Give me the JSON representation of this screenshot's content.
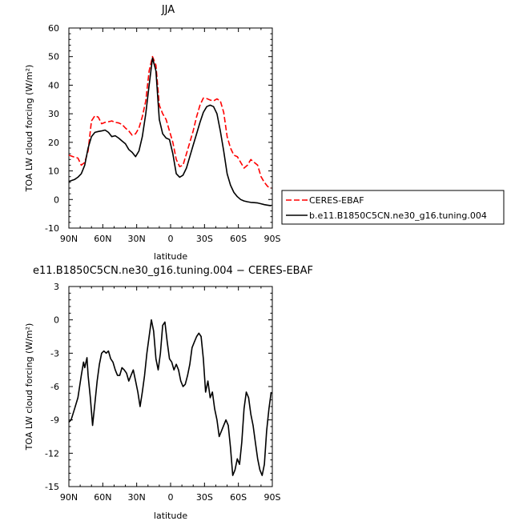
{
  "chart_data": [
    {
      "type": "line",
      "title": "JJA",
      "xlabel": "latitude",
      "ylabel": "TOA LW cloud forcing (W/m²)",
      "xlim": [
        90,
        -90
      ],
      "ylim": [
        -10,
        60
      ],
      "x_tick_labels": [
        "90N",
        "60N",
        "30N",
        "0",
        "30S",
        "60S",
        "90S"
      ],
      "y_tick_labels": [
        "-10",
        "0",
        "10",
        "20",
        "30",
        "40",
        "50",
        "60"
      ],
      "legend_placement": "right",
      "series": [
        {
          "name": "CERES-EBAF",
          "color": "#ff0000",
          "dash": "dashed",
          "x": [
            90,
            85,
            82,
            79,
            76,
            73,
            70,
            67,
            64,
            61,
            58,
            55,
            52,
            49,
            46,
            43,
            40,
            37,
            34,
            31,
            28,
            25,
            22,
            19,
            16,
            13,
            10,
            7,
            4,
            1,
            -2,
            -5,
            -8,
            -11,
            -14,
            -17,
            -20,
            -23,
            -26,
            -29,
            -32,
            -35,
            -38,
            -41,
            -44,
            -47,
            -50,
            -53,
            -56,
            -59,
            -62,
            -65,
            -68,
            -71,
            -74,
            -77,
            -80,
            -83,
            -86,
            -89
          ],
          "y": [
            15.5,
            14.8,
            14.5,
            12.0,
            13.0,
            17.0,
            27.5,
            29.3,
            28.8,
            26.5,
            27.0,
            27.2,
            27.5,
            27.0,
            26.8,
            26.3,
            25.0,
            24.0,
            22.5,
            23.0,
            25.0,
            29.0,
            34.5,
            45.0,
            50.0,
            47.0,
            33.0,
            30.0,
            28.0,
            24.0,
            20.0,
            14.0,
            11.5,
            12.0,
            16.0,
            20.0,
            24.0,
            29.0,
            33.0,
            35.5,
            35.3,
            34.8,
            34.5,
            35.2,
            34.5,
            30.5,
            22.0,
            18.0,
            15.5,
            15.0,
            13.0,
            11.0,
            12.0,
            14.0,
            13.0,
            12.0,
            8.0,
            6.0,
            4.5,
            4.0
          ]
        },
        {
          "name": "b.e11.B1850C5CN.ne30_g16.tuning.004",
          "color": "#000000",
          "dash": "solid",
          "x": [
            90,
            85,
            82,
            79,
            76,
            73,
            70,
            67,
            64,
            61,
            58,
            55,
            52,
            49,
            46,
            43,
            40,
            37,
            34,
            31,
            28,
            25,
            22,
            19,
            16,
            13,
            10,
            7,
            4,
            1,
            -2,
            -5,
            -8,
            -11,
            -14,
            -17,
            -20,
            -23,
            -26,
            -29,
            -32,
            -35,
            -38,
            -41,
            -44,
            -47,
            -50,
            -53,
            -56,
            -59,
            -62,
            -65,
            -68,
            -71,
            -74,
            -77,
            -80,
            -83,
            -86,
            -89
          ],
          "y": [
            6.3,
            7.0,
            7.8,
            9.0,
            12.0,
            18.0,
            22.0,
            23.5,
            23.8,
            24.0,
            24.3,
            23.5,
            22.0,
            22.3,
            21.5,
            20.5,
            19.5,
            17.5,
            16.5,
            15.0,
            17.0,
            22.0,
            30.0,
            40.0,
            49.5,
            45.0,
            28.0,
            23.0,
            21.5,
            21.0,
            16.0,
            9.0,
            7.8,
            8.5,
            11.0,
            15.0,
            19.0,
            23.0,
            27.0,
            30.5,
            32.5,
            33.0,
            32.5,
            30.0,
            24.0,
            17.0,
            9.0,
            5.0,
            2.5,
            1.0,
            0.0,
            -0.5,
            -0.8,
            -1.0,
            -1.1,
            -1.2,
            -1.5,
            -1.8,
            -2.0,
            -2.2
          ]
        }
      ]
    },
    {
      "type": "line",
      "title": "e11.B1850C5CN.ne30_g16.tuning.004 − CERES-EBAF",
      "xlabel": "latitude",
      "ylabel": "TOA LW cloud forcing (W/m²)",
      "xlim": [
        90,
        -90
      ],
      "ylim": [
        -15,
        3
      ],
      "x_tick_labels": [
        "90N",
        "60N",
        "30N",
        "0",
        "30S",
        "60S",
        "90S"
      ],
      "y_tick_labels": [
        "-15",
        "-12",
        "-9",
        "-6",
        "-3",
        "0",
        "3"
      ],
      "series": [
        {
          "color": "#000000",
          "dash": "solid",
          "x": [
            90,
            88,
            85,
            82,
            79,
            77,
            76,
            74,
            73,
            71,
            69,
            67,
            65,
            63,
            61,
            59,
            57,
            55,
            53,
            51,
            49,
            47,
            45,
            43,
            41,
            39,
            37,
            35,
            33,
            31,
            29,
            27,
            25,
            23,
            21,
            19,
            17,
            15,
            13,
            11,
            9,
            7,
            5,
            3,
            1,
            -1,
            -3,
            -5,
            -7,
            -9,
            -11,
            -13,
            -15,
            -17,
            -19,
            -21,
            -23,
            -25,
            -27,
            -29,
            -31,
            -33,
            -35,
            -37,
            -39,
            -41,
            -43,
            -45,
            -47,
            -49,
            -51,
            -53,
            -55,
            -57,
            -59,
            -61,
            -63,
            -65,
            -67,
            -69,
            -71,
            -73,
            -75,
            -77,
            -79,
            -81,
            -83,
            -85,
            -87,
            -89
          ],
          "y": [
            -9.2,
            -9.0,
            -8.0,
            -7.0,
            -5.0,
            -3.8,
            -4.3,
            -3.4,
            -5.0,
            -7.0,
            -9.5,
            -7.5,
            -5.5,
            -4.0,
            -3.0,
            -2.8,
            -3.0,
            -2.8,
            -3.5,
            -3.8,
            -4.5,
            -5.0,
            -5.0,
            -4.3,
            -4.5,
            -4.8,
            -5.5,
            -5.0,
            -4.5,
            -5.5,
            -6.5,
            -7.8,
            -6.5,
            -5.0,
            -3.0,
            -1.5,
            0.0,
            -1.0,
            -3.5,
            -4.5,
            -3.0,
            -0.5,
            -0.2,
            -2.0,
            -3.5,
            -3.8,
            -4.5,
            -4.0,
            -4.5,
            -5.5,
            -6.0,
            -5.8,
            -5.0,
            -4.0,
            -2.5,
            -2.0,
            -1.5,
            -1.2,
            -1.5,
            -3.5,
            -6.5,
            -5.5,
            -7.0,
            -6.5,
            -8.0,
            -9.0,
            -10.5,
            -10.0,
            -9.5,
            -9.0,
            -9.5,
            -11.5,
            -14.0,
            -13.5,
            -12.5,
            -13.0,
            -11.0,
            -8.0,
            -6.5,
            -7.0,
            -8.5,
            -9.5,
            -11.0,
            -12.5,
            -13.5,
            -14.0,
            -13.0,
            -10.0,
            -8.0,
            -6.5
          ]
        }
      ]
    }
  ]
}
